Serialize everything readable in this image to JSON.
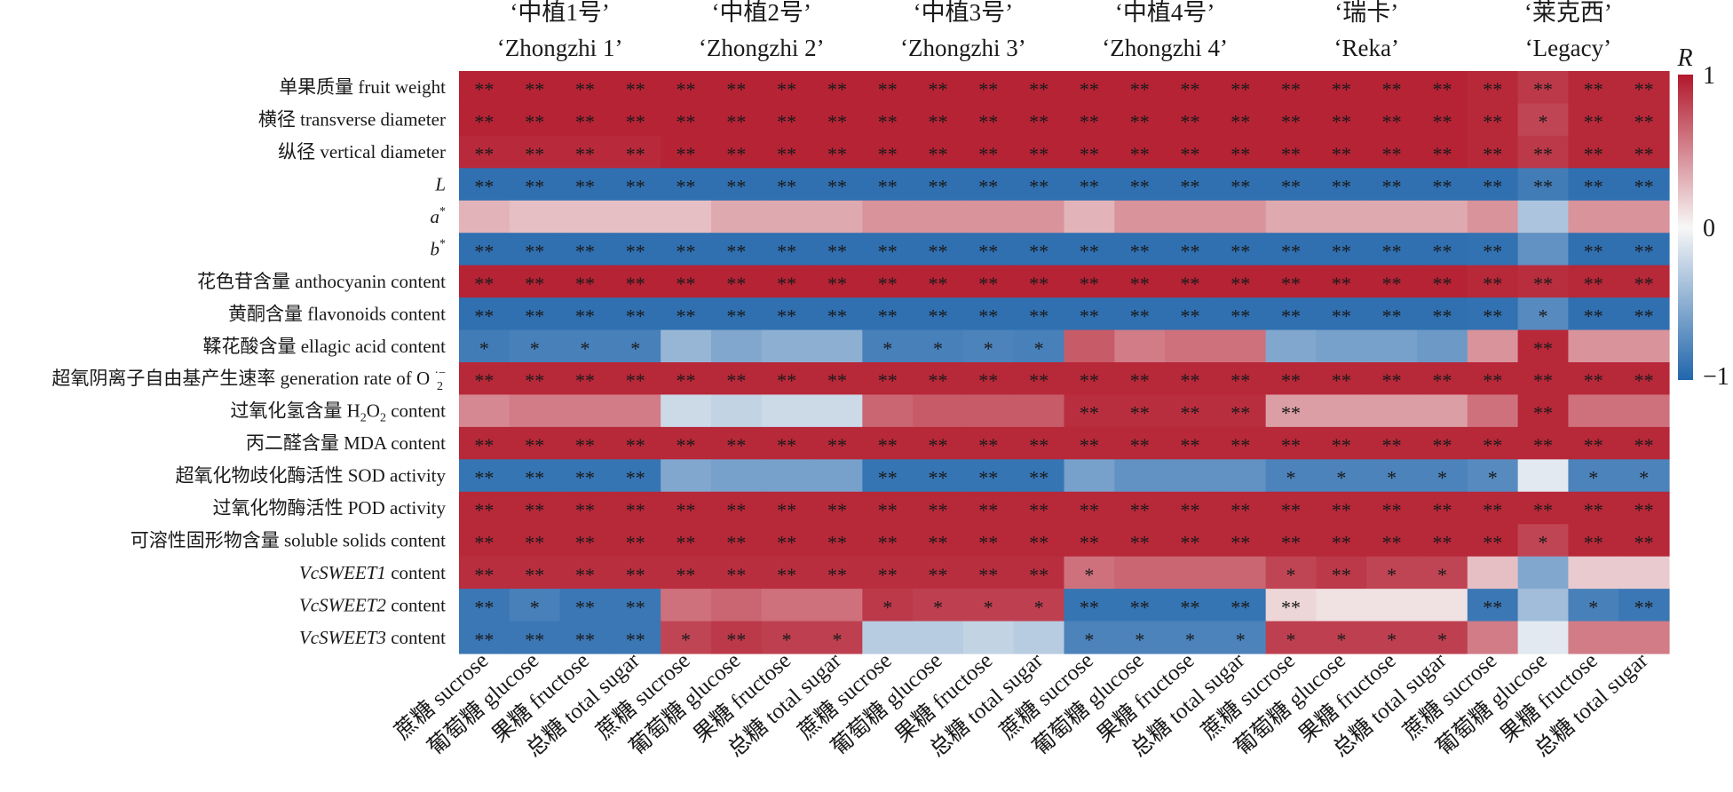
{
  "chart_data": {
    "type": "heatmap",
    "colorbar": {
      "title": "R",
      "min": -1,
      "max": 1,
      "ticks": [
        "1",
        "0",
        "−1"
      ],
      "colors": [
        "#2166ac",
        "#f7f7f7",
        "#b2182b"
      ]
    },
    "groups": [
      {
        "name_zh": "‘中植1号’",
        "name_en": "‘Zhongzhi 1’"
      },
      {
        "name_zh": "‘中植2号’",
        "name_en": "‘Zhongzhi 2’"
      },
      {
        "name_zh": "‘中植3号’",
        "name_en": "‘Zhongzhi 3’"
      },
      {
        "name_zh": "‘中植4号’",
        "name_en": "‘Zhongzhi 4’"
      },
      {
        "name_zh": "‘瑞卡’",
        "name_en": "‘Reka’"
      },
      {
        "name_zh": "‘莱克西’",
        "name_en": "‘Legacy’"
      }
    ],
    "columns": [
      "蔗糖 sucrose",
      "葡萄糖 glucose",
      "果糖 fructose",
      "总糖 total sugar"
    ],
    "rows": [
      "单果质量 fruit weight",
      "横径 transverse diameter",
      "纵径 vertical diameter",
      "L",
      "a*",
      "b*",
      "花色苷含量 anthocyanin content",
      "黄酮含量 flavonoids content",
      "鞣花酸含量 ellagic acid content",
      "超氧阴离子自由基产生速率 generation rate of O2·−",
      "过氧化氢含量 H2O2 content",
      "丙二醛含量 MDA content",
      "超氧化物歧化酶活性 SOD activity",
      "过氧化物酶活性 POD activity",
      "可溶性固形物含量 soluble solids content",
      "VcSWEET1 content",
      "VcSWEET2 content",
      "VcSWEET3 content"
    ],
    "values": [
      [
        0.95,
        0.95,
        0.95,
        0.95,
        0.95,
        0.95,
        0.95,
        0.95,
        0.95,
        0.95,
        0.95,
        0.95,
        0.95,
        0.95,
        0.95,
        0.95,
        0.95,
        0.95,
        0.95,
        0.95,
        0.93,
        0.85,
        0.93,
        0.93
      ],
      [
        0.95,
        0.95,
        0.95,
        0.95,
        0.95,
        0.95,
        0.95,
        0.95,
        0.95,
        0.95,
        0.95,
        0.95,
        0.95,
        0.95,
        0.95,
        0.95,
        0.95,
        0.95,
        0.95,
        0.95,
        0.93,
        0.8,
        0.93,
        0.93
      ],
      [
        0.92,
        0.92,
        0.92,
        0.92,
        0.95,
        0.95,
        0.95,
        0.95,
        0.95,
        0.95,
        0.95,
        0.95,
        0.95,
        0.95,
        0.95,
        0.95,
        0.95,
        0.95,
        0.95,
        0.95,
        0.93,
        0.85,
        0.93,
        0.93
      ],
      [
        -0.93,
        -0.93,
        -0.93,
        -0.93,
        -0.93,
        -0.93,
        -0.93,
        -0.93,
        -0.93,
        -0.93,
        -0.93,
        -0.93,
        -0.93,
        -0.93,
        -0.93,
        -0.93,
        -0.93,
        -0.93,
        -0.93,
        -0.93,
        -0.93,
        -0.85,
        -0.93,
        -0.93
      ],
      [
        0.3,
        0.25,
        0.25,
        0.25,
        0.25,
        0.35,
        0.35,
        0.35,
        0.45,
        0.45,
        0.45,
        0.45,
        0.3,
        0.45,
        0.45,
        0.45,
        0.35,
        0.35,
        0.35,
        0.35,
        0.45,
        -0.35,
        0.45,
        0.45
      ],
      [
        -0.93,
        -0.93,
        -0.93,
        -0.93,
        -0.93,
        -0.93,
        -0.93,
        -0.93,
        -0.93,
        -0.93,
        -0.93,
        -0.93,
        -0.93,
        -0.93,
        -0.93,
        -0.93,
        -0.93,
        -0.93,
        -0.93,
        -0.93,
        -0.92,
        -0.7,
        -0.93,
        -0.93
      ],
      [
        0.95,
        0.95,
        0.95,
        0.95,
        0.95,
        0.95,
        0.95,
        0.95,
        0.95,
        0.95,
        0.95,
        0.95,
        0.95,
        0.95,
        0.95,
        0.95,
        0.95,
        0.95,
        0.95,
        0.95,
        0.93,
        0.9,
        0.93,
        0.93
      ],
      [
        -0.93,
        -0.93,
        -0.93,
        -0.93,
        -0.93,
        -0.93,
        -0.93,
        -0.93,
        -0.93,
        -0.93,
        -0.93,
        -0.93,
        -0.93,
        -0.93,
        -0.93,
        -0.93,
        -0.93,
        -0.93,
        -0.93,
        -0.93,
        -0.92,
        -0.75,
        -0.93,
        -0.93
      ],
      [
        -0.85,
        -0.82,
        -0.82,
        -0.82,
        -0.45,
        -0.55,
        -0.5,
        -0.5,
        -0.82,
        -0.82,
        -0.8,
        -0.82,
        0.7,
        0.55,
        0.6,
        0.6,
        -0.55,
        -0.6,
        -0.6,
        -0.65,
        0.45,
        0.93,
        0.45,
        0.45
      ],
      [
        0.93,
        0.93,
        0.93,
        0.93,
        0.93,
        0.93,
        0.93,
        0.93,
        0.93,
        0.93,
        0.93,
        0.93,
        0.93,
        0.93,
        0.93,
        0.93,
        0.93,
        0.93,
        0.93,
        0.93,
        0.93,
        0.93,
        0.93,
        0.93
      ],
      [
        0.5,
        0.55,
        0.55,
        0.55,
        -0.2,
        -0.25,
        -0.2,
        -0.2,
        0.65,
        0.7,
        0.7,
        0.7,
        0.9,
        0.9,
        0.9,
        0.9,
        0.4,
        0.4,
        0.4,
        0.4,
        0.6,
        0.93,
        0.6,
        0.6
      ],
      [
        0.93,
        0.93,
        0.93,
        0.93,
        0.93,
        0.93,
        0.93,
        0.93,
        0.93,
        0.93,
        0.93,
        0.93,
        0.93,
        0.93,
        0.93,
        0.93,
        0.93,
        0.93,
        0.93,
        0.93,
        0.93,
        0.93,
        0.93,
        0.93
      ],
      [
        -0.9,
        -0.9,
        -0.9,
        -0.9,
        -0.55,
        -0.6,
        -0.6,
        -0.6,
        -0.9,
        -0.9,
        -0.9,
        -0.9,
        -0.6,
        -0.7,
        -0.7,
        -0.7,
        -0.8,
        -0.8,
        -0.8,
        -0.8,
        -0.75,
        -0.1,
        -0.8,
        -0.8
      ],
      [
        0.93,
        0.93,
        0.93,
        0.93,
        0.93,
        0.93,
        0.93,
        0.93,
        0.93,
        0.93,
        0.93,
        0.93,
        0.93,
        0.93,
        0.93,
        0.93,
        0.93,
        0.93,
        0.93,
        0.93,
        0.93,
        0.93,
        0.93,
        0.93
      ],
      [
        0.93,
        0.93,
        0.93,
        0.93,
        0.93,
        0.93,
        0.93,
        0.93,
        0.93,
        0.93,
        0.93,
        0.93,
        0.93,
        0.93,
        0.93,
        0.93,
        0.93,
        0.93,
        0.93,
        0.93,
        0.93,
        0.8,
        0.93,
        0.93
      ],
      [
        0.9,
        0.9,
        0.9,
        0.9,
        0.9,
        0.9,
        0.9,
        0.9,
        0.9,
        0.9,
        0.9,
        0.9,
        0.6,
        0.65,
        0.65,
        0.65,
        0.8,
        0.85,
        0.8,
        0.8,
        0.25,
        -0.55,
        0.2,
        0.2
      ],
      [
        -0.88,
        -0.82,
        -0.88,
        -0.88,
        0.6,
        0.65,
        0.6,
        0.6,
        0.85,
        0.82,
        0.82,
        0.82,
        -0.9,
        -0.9,
        -0.9,
        -0.9,
        0.15,
        0.1,
        0.1,
        0.1,
        -0.88,
        -0.4,
        -0.82,
        -0.88
      ],
      [
        -0.88,
        -0.88,
        -0.88,
        -0.88,
        0.8,
        0.85,
        0.82,
        0.82,
        -0.3,
        -0.3,
        -0.25,
        -0.3,
        -0.8,
        -0.8,
        -0.8,
        -0.8,
        0.82,
        0.82,
        0.82,
        0.82,
        0.55,
        -0.1,
        0.55,
        0.55
      ]
    ],
    "significance": [
      [
        "**",
        "**",
        "**",
        "**",
        "**",
        "**",
        "**",
        "**",
        "**",
        "**",
        "**",
        "**",
        "**",
        "**",
        "**",
        "**",
        "**",
        "**",
        "**",
        "**",
        "**",
        "**",
        "**",
        "**"
      ],
      [
        "**",
        "**",
        "**",
        "**",
        "**",
        "**",
        "**",
        "**",
        "**",
        "**",
        "**",
        "**",
        "**",
        "**",
        "**",
        "**",
        "**",
        "**",
        "**",
        "**",
        "**",
        "*",
        "**",
        "**"
      ],
      [
        "**",
        "**",
        "**",
        "**",
        "**",
        "**",
        "**",
        "**",
        "**",
        "**",
        "**",
        "**",
        "**",
        "**",
        "**",
        "**",
        "**",
        "**",
        "**",
        "**",
        "**",
        "**",
        "**",
        "**"
      ],
      [
        "**",
        "**",
        "**",
        "**",
        "**",
        "**",
        "**",
        "**",
        "**",
        "**",
        "**",
        "**",
        "**",
        "**",
        "**",
        "**",
        "**",
        "**",
        "**",
        "**",
        "**",
        "**",
        "**",
        "**"
      ],
      [
        "",
        "",
        "",
        "",
        "",
        "",
        "",
        "",
        "",
        "",
        "",
        "",
        "",
        "",
        "",
        "",
        "",
        "",
        "",
        "",
        "",
        "",
        "",
        ""
      ],
      [
        "**",
        "**",
        "**",
        "**",
        "**",
        "**",
        "**",
        "**",
        "**",
        "**",
        "**",
        "**",
        "**",
        "**",
        "**",
        "**",
        "**",
        "**",
        "**",
        "**",
        "**",
        "",
        "**",
        "**"
      ],
      [
        "**",
        "**",
        "**",
        "**",
        "**",
        "**",
        "**",
        "**",
        "**",
        "**",
        "**",
        "**",
        "**",
        "**",
        "**",
        "**",
        "**",
        "**",
        "**",
        "**",
        "**",
        "**",
        "**",
        "**"
      ],
      [
        "**",
        "**",
        "**",
        "**",
        "**",
        "**",
        "**",
        "**",
        "**",
        "**",
        "**",
        "**",
        "**",
        "**",
        "**",
        "**",
        "**",
        "**",
        "**",
        "**",
        "**",
        "*",
        "**",
        "**"
      ],
      [
        "*",
        "*",
        "*",
        "*",
        "",
        "",
        "",
        "",
        "*",
        "*",
        "*",
        "*",
        "",
        "",
        "",
        "",
        "",
        "",
        "",
        "",
        "",
        "**",
        "",
        ""
      ],
      [
        "**",
        "**",
        "**",
        "**",
        "**",
        "**",
        "**",
        "**",
        "**",
        "**",
        "**",
        "**",
        "**",
        "**",
        "**",
        "**",
        "**",
        "**",
        "**",
        "**",
        "**",
        "**",
        "**",
        "**"
      ],
      [
        "",
        "",
        "",
        "",
        "",
        "",
        "",
        "",
        "",
        "",
        "",
        "",
        "**",
        "**",
        "**",
        "**",
        "**",
        "",
        "",
        "",
        "",
        "**",
        "",
        ""
      ],
      [
        "**",
        "**",
        "**",
        "**",
        "**",
        "**",
        "**",
        "**",
        "**",
        "**",
        "**",
        "**",
        "**",
        "**",
        "**",
        "**",
        "**",
        "**",
        "**",
        "**",
        "**",
        "**",
        "**",
        "**"
      ],
      [
        "**",
        "**",
        "**",
        "**",
        "",
        "",
        "",
        "",
        "**",
        "**",
        "**",
        "**",
        "",
        "",
        "",
        "",
        "*",
        "*",
        "*",
        "*",
        "*",
        "",
        "*",
        "*"
      ],
      [
        "**",
        "**",
        "**",
        "**",
        "**",
        "**",
        "**",
        "**",
        "**",
        "**",
        "**",
        "**",
        "**",
        "**",
        "**",
        "**",
        "**",
        "**",
        "**",
        "**",
        "**",
        "**",
        "**",
        "**"
      ],
      [
        "**",
        "**",
        "**",
        "**",
        "**",
        "**",
        "**",
        "**",
        "**",
        "**",
        "**",
        "**",
        "**",
        "**",
        "**",
        "**",
        "**",
        "**",
        "**",
        "**",
        "**",
        "*",
        "**",
        "**"
      ],
      [
        "**",
        "**",
        "**",
        "**",
        "**",
        "**",
        "**",
        "**",
        "**",
        "**",
        "**",
        "**",
        "*",
        "",
        "",
        "",
        "*",
        "**",
        "*",
        "*",
        "",
        "",
        "",
        ""
      ],
      [
        "**",
        "*",
        "**",
        "**",
        "",
        "",
        "",
        "",
        "*",
        "*",
        "*",
        "*",
        "**",
        "**",
        "**",
        "**",
        "**",
        "",
        "",
        "",
        "**",
        "",
        "*",
        "**"
      ],
      [
        "**",
        "**",
        "**",
        "**",
        "*",
        "**",
        "*",
        "*",
        "",
        "",
        "",
        "",
        "*",
        "*",
        "*",
        "*",
        "*",
        "*",
        "*",
        "*",
        "",
        "",
        "",
        ""
      ]
    ]
  }
}
